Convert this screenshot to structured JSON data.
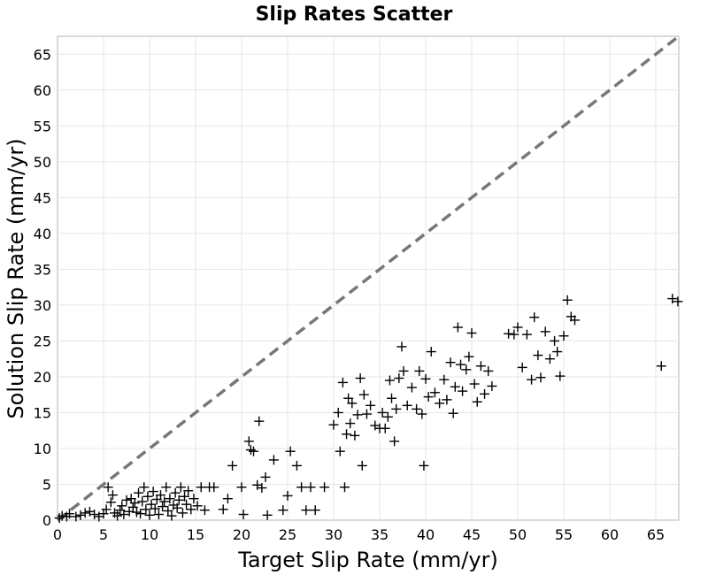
{
  "chart_data": {
    "type": "scatter",
    "title": "Slip Rates Scatter",
    "xlabel": "Target Slip Rate (mm/yr)",
    "ylabel": "Solution Slip Rate (mm/yr)",
    "xlim": [
      0,
      67.5
    ],
    "ylim": [
      0,
      67.5
    ],
    "xticks": [
      "0",
      "5",
      "10",
      "15",
      "20",
      "25",
      "30",
      "35",
      "40",
      "45",
      "50",
      "55",
      "60",
      "65"
    ],
    "yticks": [
      "0",
      "5",
      "10",
      "15",
      "20",
      "25",
      "30",
      "35",
      "40",
      "45",
      "50",
      "55",
      "60",
      "65"
    ],
    "grid": true,
    "reference_line": {
      "style": "dashed",
      "color": "#777777",
      "from": [
        0,
        0
      ],
      "to": [
        67.5,
        67.5
      ]
    },
    "marker": {
      "shape": "plus",
      "color": "#000000"
    },
    "points": [
      [
        0.2,
        0.3
      ],
      [
        0.5,
        0.6
      ],
      [
        1.0,
        0.5
      ],
      [
        1.3,
        0.9
      ],
      [
        2.0,
        0.5
      ],
      [
        2.5,
        0.7
      ],
      [
        3.0,
        1.0
      ],
      [
        3.5,
        1.2
      ],
      [
        4.0,
        0.8
      ],
      [
        4.5,
        0.5
      ],
      [
        5.0,
        0.9
      ],
      [
        5.3,
        1.5
      ],
      [
        5.5,
        4.6
      ],
      [
        5.8,
        2.5
      ],
      [
        6.0,
        3.5
      ],
      [
        6.2,
        1.0
      ],
      [
        6.5,
        0.6
      ],
      [
        6.8,
        1.4
      ],
      [
        7.0,
        2.0
      ],
      [
        7.2,
        0.8
      ],
      [
        7.5,
        2.8
      ],
      [
        7.8,
        1.2
      ],
      [
        8.0,
        3.0
      ],
      [
        8.2,
        1.8
      ],
      [
        8.4,
        2.4
      ],
      [
        8.6,
        1.1
      ],
      [
        8.8,
        3.8
      ],
      [
        9.0,
        0.9
      ],
      [
        9.2,
        2.6
      ],
      [
        9.4,
        4.6
      ],
      [
        9.6,
        1.5
      ],
      [
        9.8,
        3.3
      ],
      [
        10.0,
        0.7
      ],
      [
        10.2,
        2.2
      ],
      [
        10.4,
        4.0
      ],
      [
        10.6,
        1.6
      ],
      [
        10.8,
        2.9
      ],
      [
        11.0,
        0.8
      ],
      [
        11.2,
        3.5
      ],
      [
        11.4,
        1.9
      ],
      [
        11.6,
        2.6
      ],
      [
        11.8,
        4.6
      ],
      [
        12.0,
        1.3
      ],
      [
        12.2,
        3.0
      ],
      [
        12.4,
        0.6
      ],
      [
        12.6,
        2.1
      ],
      [
        12.8,
        3.8
      ],
      [
        13.0,
        1.7
      ],
      [
        13.2,
        2.8
      ],
      [
        13.4,
        4.6
      ],
      [
        13.6,
        1.0
      ],
      [
        13.8,
        3.3
      ],
      [
        14.0,
        2.2
      ],
      [
        14.2,
        4.1
      ],
      [
        14.5,
        1.5
      ],
      [
        14.8,
        3.0
      ],
      [
        15.2,
        2.0
      ],
      [
        15.6,
        4.6
      ],
      [
        16.0,
        1.4
      ],
      [
        16.5,
        4.6
      ],
      [
        17.0,
        4.6
      ],
      [
        18.0,
        1.5
      ],
      [
        18.5,
        3.0
      ],
      [
        19.0,
        7.6
      ],
      [
        20.0,
        4.6
      ],
      [
        20.2,
        0.8
      ],
      [
        20.8,
        11.0
      ],
      [
        21.0,
        9.8
      ],
      [
        21.3,
        9.6
      ],
      [
        21.7,
        4.9
      ],
      [
        21.9,
        13.8
      ],
      [
        22.2,
        4.5
      ],
      [
        22.6,
        6.0
      ],
      [
        22.8,
        0.7
      ],
      [
        23.5,
        8.4
      ],
      [
        24.5,
        1.4
      ],
      [
        25.0,
        3.4
      ],
      [
        25.3,
        9.6
      ],
      [
        26.0,
        7.6
      ],
      [
        26.5,
        4.6
      ],
      [
        27.0,
        1.4
      ],
      [
        27.5,
        4.6
      ],
      [
        28.0,
        1.4
      ],
      [
        29.0,
        4.6
      ],
      [
        30.0,
        13.3
      ],
      [
        30.5,
        15.0
      ],
      [
        30.7,
        9.6
      ],
      [
        31.0,
        19.2
      ],
      [
        31.2,
        4.6
      ],
      [
        31.4,
        12.0
      ],
      [
        31.6,
        17.0
      ],
      [
        31.8,
        13.5
      ],
      [
        32.0,
        16.3
      ],
      [
        32.3,
        11.8
      ],
      [
        32.6,
        14.7
      ],
      [
        32.9,
        19.8
      ],
      [
        33.1,
        7.6
      ],
      [
        33.3,
        17.5
      ],
      [
        33.6,
        14.8
      ],
      [
        34.0,
        16.0
      ],
      [
        34.5,
        13.2
      ],
      [
        35.0,
        12.8
      ],
      [
        35.3,
        15.0
      ],
      [
        35.6,
        12.8
      ],
      [
        35.9,
        14.4
      ],
      [
        36.1,
        19.5
      ],
      [
        36.3,
        17.0
      ],
      [
        36.6,
        11.0
      ],
      [
        36.8,
        15.5
      ],
      [
        37.1,
        19.8
      ],
      [
        37.4,
        24.2
      ],
      [
        37.6,
        20.8
      ],
      [
        38.0,
        16.0
      ],
      [
        38.5,
        18.5
      ],
      [
        39.0,
        15.5
      ],
      [
        39.3,
        20.8
      ],
      [
        39.6,
        14.8
      ],
      [
        39.8,
        7.6
      ],
      [
        40.0,
        19.7
      ],
      [
        40.3,
        17.2
      ],
      [
        40.6,
        23.5
      ],
      [
        41.0,
        17.8
      ],
      [
        41.5,
        16.3
      ],
      [
        42.0,
        19.6
      ],
      [
        42.3,
        16.8
      ],
      [
        42.7,
        22.0
      ],
      [
        43.0,
        14.9
      ],
      [
        43.2,
        18.6
      ],
      [
        43.5,
        26.9
      ],
      [
        43.8,
        21.7
      ],
      [
        44.0,
        18.0
      ],
      [
        44.4,
        21.0
      ],
      [
        44.7,
        22.8
      ],
      [
        45.0,
        26.1
      ],
      [
        45.3,
        19.0
      ],
      [
        45.6,
        16.5
      ],
      [
        46.0,
        21.5
      ],
      [
        46.4,
        17.6
      ],
      [
        46.8,
        20.8
      ],
      [
        47.2,
        18.7
      ],
      [
        49.0,
        26.0
      ],
      [
        49.6,
        25.9
      ],
      [
        50.0,
        26.9
      ],
      [
        50.5,
        21.3
      ],
      [
        51.0,
        25.9
      ],
      [
        51.5,
        19.6
      ],
      [
        51.8,
        28.3
      ],
      [
        52.2,
        23.0
      ],
      [
        52.5,
        19.9
      ],
      [
        53.0,
        26.3
      ],
      [
        53.5,
        22.5
      ],
      [
        54.0,
        25.0
      ],
      [
        54.3,
        23.5
      ],
      [
        54.6,
        20.1
      ],
      [
        55.0,
        25.7
      ],
      [
        55.4,
        30.7
      ],
      [
        55.8,
        28.4
      ],
      [
        56.2,
        27.9
      ],
      [
        65.6,
        21.5
      ],
      [
        66.8,
        30.9
      ],
      [
        67.4,
        30.5
      ]
    ]
  }
}
